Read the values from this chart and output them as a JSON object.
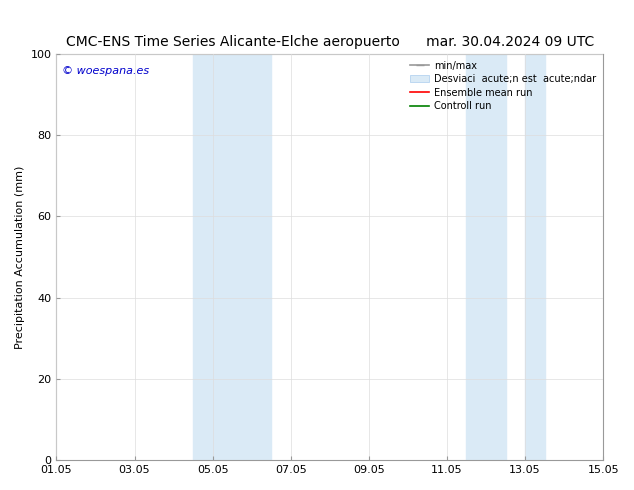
{
  "title_left": "CMC-ENS Time Series Alicante-Elche aeropuerto",
  "title_right": "mar. 30.04.2024 09 UTC",
  "ylabel": "Precipitation Accumulation (mm)",
  "xlim": [
    0,
    14
  ],
  "ylim": [
    0,
    100
  ],
  "yticks": [
    0,
    20,
    40,
    60,
    80,
    100
  ],
  "xtick_labels": [
    "01.05",
    "03.05",
    "05.05",
    "07.05",
    "09.05",
    "11.05",
    "13.05",
    "15.05"
  ],
  "xtick_positions": [
    0,
    2,
    4,
    6,
    8,
    10,
    12,
    14
  ],
  "shaded_bands": [
    {
      "xstart": 3.5,
      "xend": 4.5,
      "color": "#daeaf6"
    },
    {
      "xstart": 4.5,
      "xend": 5.5,
      "color": "#daeaf6"
    },
    {
      "xstart": 10.5,
      "xend": 11.5,
      "color": "#daeaf6"
    },
    {
      "xstart": 12.0,
      "xend": 12.5,
      "color": "#daeaf6"
    }
  ],
  "watermark": "© woespana.es",
  "watermark_color": "#0000cc",
  "background_color": "#ffffff",
  "grid_color": "#dddddd",
  "spine_color": "#999999",
  "title_fontsize": 10,
  "ylabel_fontsize": 8,
  "tick_fontsize": 8,
  "legend_fontsize": 7,
  "watermark_fontsize": 8
}
